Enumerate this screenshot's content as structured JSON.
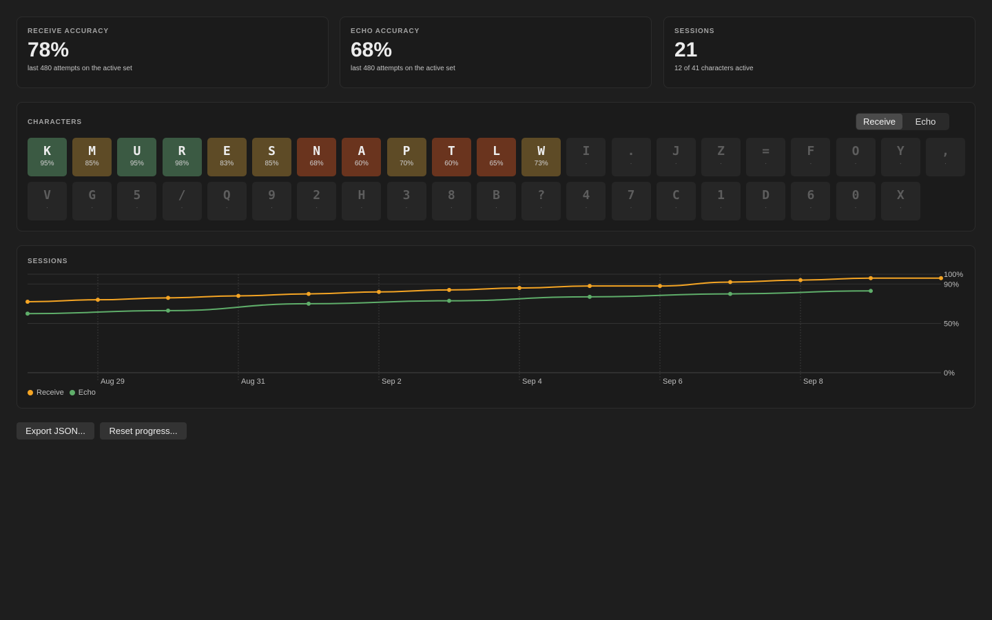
{
  "stats": [
    {
      "label": "RECEIVE ACCURACY",
      "value": "78%",
      "sub": "last 480 attempts on the active set"
    },
    {
      "label": "ECHO ACCURACY",
      "value": "68%",
      "sub": "last 480 attempts on the active set"
    },
    {
      "label": "SESSIONS",
      "value": "21",
      "sub": "12 of 41 characters active"
    }
  ],
  "characters": {
    "label": "CHARACTERS",
    "toggle": {
      "receive": "Receive",
      "echo": "Echo",
      "active": "receive"
    },
    "colors": {
      "green": "#3b5a43",
      "olive": "#5e4b26",
      "rust": "#6a341e",
      "inactive": "#262626"
    },
    "rows": [
      [
        {
          "ch": "K",
          "pct": "95%",
          "tone": "green"
        },
        {
          "ch": "M",
          "pct": "85%",
          "tone": "olive"
        },
        {
          "ch": "U",
          "pct": "95%",
          "tone": "green"
        },
        {
          "ch": "R",
          "pct": "98%",
          "tone": "green"
        },
        {
          "ch": "E",
          "pct": "83%",
          "tone": "olive"
        },
        {
          "ch": "S",
          "pct": "85%",
          "tone": "olive"
        },
        {
          "ch": "N",
          "pct": "68%",
          "tone": "rust"
        },
        {
          "ch": "A",
          "pct": "60%",
          "tone": "rust"
        },
        {
          "ch": "P",
          "pct": "70%",
          "tone": "olive"
        },
        {
          "ch": "T",
          "pct": "60%",
          "tone": "rust"
        },
        {
          "ch": "L",
          "pct": "65%",
          "tone": "rust"
        },
        {
          "ch": "W",
          "pct": "73%",
          "tone": "olive"
        },
        {
          "ch": "I",
          "pct": "·",
          "tone": "inactive"
        },
        {
          "ch": ".",
          "pct": "·",
          "tone": "inactive"
        },
        {
          "ch": "J",
          "pct": "·",
          "tone": "inactive"
        },
        {
          "ch": "Z",
          "pct": "·",
          "tone": "inactive"
        },
        {
          "ch": "=",
          "pct": "·",
          "tone": "inactive"
        },
        {
          "ch": "F",
          "pct": "·",
          "tone": "inactive"
        },
        {
          "ch": "O",
          "pct": "·",
          "tone": "inactive"
        },
        {
          "ch": "Y",
          "pct": "·",
          "tone": "inactive"
        },
        {
          "ch": ",",
          "pct": "·",
          "tone": "inactive"
        }
      ],
      [
        {
          "ch": "V",
          "pct": "·",
          "tone": "inactive"
        },
        {
          "ch": "G",
          "pct": "·",
          "tone": "inactive"
        },
        {
          "ch": "5",
          "pct": "·",
          "tone": "inactive"
        },
        {
          "ch": "/",
          "pct": "·",
          "tone": "inactive"
        },
        {
          "ch": "Q",
          "pct": "·",
          "tone": "inactive"
        },
        {
          "ch": "9",
          "pct": "·",
          "tone": "inactive"
        },
        {
          "ch": "2",
          "pct": "·",
          "tone": "inactive"
        },
        {
          "ch": "H",
          "pct": "·",
          "tone": "inactive"
        },
        {
          "ch": "3",
          "pct": "·",
          "tone": "inactive"
        },
        {
          "ch": "8",
          "pct": "·",
          "tone": "inactive"
        },
        {
          "ch": "B",
          "pct": "·",
          "tone": "inactive"
        },
        {
          "ch": "?",
          "pct": "·",
          "tone": "inactive"
        },
        {
          "ch": "4",
          "pct": "·",
          "tone": "inactive"
        },
        {
          "ch": "7",
          "pct": "·",
          "tone": "inactive"
        },
        {
          "ch": "C",
          "pct": "·",
          "tone": "inactive"
        },
        {
          "ch": "1",
          "pct": "·",
          "tone": "inactive"
        },
        {
          "ch": "D",
          "pct": "·",
          "tone": "inactive"
        },
        {
          "ch": "6",
          "pct": "·",
          "tone": "inactive"
        },
        {
          "ch": "0",
          "pct": "·",
          "tone": "inactive"
        },
        {
          "ch": "X",
          "pct": "·",
          "tone": "inactive"
        }
      ]
    ]
  },
  "sessions": {
    "label": "SESSIONS",
    "legend": {
      "receive": "Receive",
      "echo": "Echo"
    }
  },
  "chart_data": {
    "type": "line",
    "x_start": "2025-08-27",
    "x_end": "2025-09-09",
    "xticks": [
      {
        "date": "2025-08-28",
        "label": "Aug 29"
      },
      {
        "date": "2025-08-30",
        "label": "Aug 31"
      },
      {
        "date": "2025-09-01",
        "label": "Sep 2"
      },
      {
        "date": "2025-09-03",
        "label": "Sep 4"
      },
      {
        "date": "2025-09-05",
        "label": "Sep 6"
      },
      {
        "date": "2025-09-07",
        "label": "Sep 8"
      }
    ],
    "yticks": [
      {
        "v": 100,
        "label": "100%"
      },
      {
        "v": 90,
        "label": "90%"
      },
      {
        "v": 50,
        "label": "50%"
      },
      {
        "v": 0,
        "label": "0%"
      }
    ],
    "ylim": [
      0,
      100
    ],
    "grid": true,
    "legend": "bottom-left",
    "colors": {
      "Receive": "#f5a524",
      "Echo": "#5fae6a"
    },
    "series": [
      {
        "name": "Receive",
        "points": [
          {
            "x": "2025-08-27 00:00",
            "y": 72
          },
          {
            "x": "2025-08-28 00:00",
            "y": 74
          },
          {
            "x": "2025-08-29 00:00",
            "y": 76
          },
          {
            "x": "2025-08-30 00:00",
            "y": 78
          },
          {
            "x": "2025-08-31 00:00",
            "y": 80
          },
          {
            "x": "2025-09-01 00:00",
            "y": 82
          },
          {
            "x": "2025-09-02 00:00",
            "y": 84
          },
          {
            "x": "2025-09-03 00:00",
            "y": 86
          },
          {
            "x": "2025-09-04 00:00",
            "y": 88
          },
          {
            "x": "2025-09-05 00:00",
            "y": 88
          },
          {
            "x": "2025-09-06 00:00",
            "y": 92
          },
          {
            "x": "2025-09-07 00:00",
            "y": 94
          },
          {
            "x": "2025-09-08 00:00",
            "y": 96
          },
          {
            "x": "2025-09-09 00:00",
            "y": 96
          }
        ]
      },
      {
        "name": "Echo",
        "points": [
          {
            "x": "2025-08-27 00:00",
            "y": 60
          },
          {
            "x": "2025-08-29 00:00",
            "y": 63
          },
          {
            "x": "2025-08-31 00:00",
            "y": 70
          },
          {
            "x": "2025-09-02 00:00",
            "y": 73
          },
          {
            "x": "2025-09-04 00:00",
            "y": 77
          },
          {
            "x": "2025-09-06 00:00",
            "y": 80
          },
          {
            "x": "2025-09-08 00:00",
            "y": 83
          }
        ]
      }
    ]
  },
  "actions": {
    "export": "Export JSON...",
    "reset": "Reset progress..."
  }
}
